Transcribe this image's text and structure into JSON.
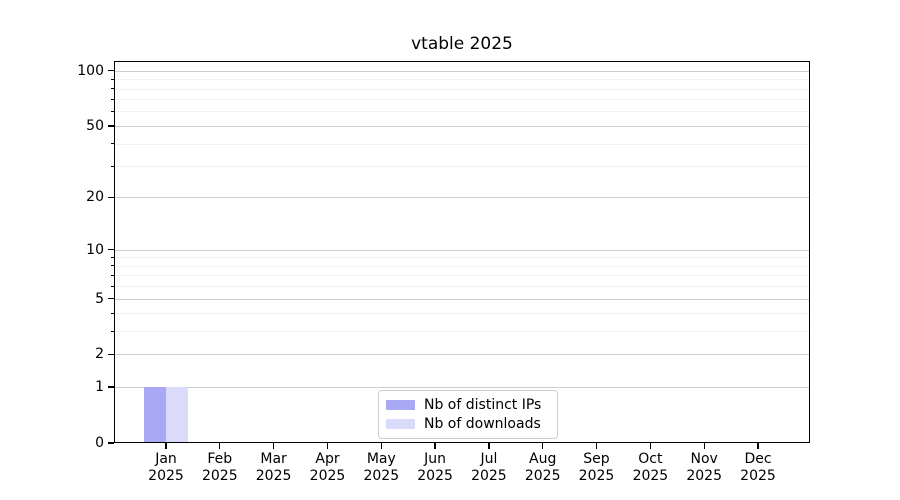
{
  "figure": {
    "title": "vtable 2025"
  },
  "chart_data": {
    "type": "bar",
    "title": "vtable 2025",
    "categories": [
      "Jan\n2025",
      "Feb\n2025",
      "Mar\n2025",
      "Apr\n2025",
      "May\n2025",
      "Jun\n2025",
      "Jul\n2025",
      "Aug\n2025",
      "Sep\n2025",
      "Oct\n2025",
      "Nov\n2025",
      "Dec\n2025"
    ],
    "series": [
      {
        "name": "Nb of distinct IPs",
        "color": "#a8a8f4",
        "values": [
          1,
          0,
          0,
          0,
          0,
          0,
          0,
          0,
          0,
          0,
          0,
          0
        ]
      },
      {
        "name": "Nb of downloads",
        "color": "#dadafa",
        "values": [
          1,
          0,
          0,
          0,
          0,
          0,
          0,
          0,
          0,
          0,
          0,
          0
        ]
      }
    ],
    "xlabel": "",
    "ylabel": "",
    "scale": "log1p",
    "ylim": [
      0,
      113
    ],
    "yticks": [
      0,
      1,
      2,
      5,
      10,
      20,
      50,
      100
    ],
    "minor_yticks": [
      3,
      4,
      6,
      7,
      8,
      9,
      30,
      40,
      60,
      70,
      80,
      90
    ],
    "grid": "horizontal",
    "legend": {
      "position": "lower center",
      "entries": [
        "Nb of distinct IPs",
        "Nb of downloads"
      ]
    }
  },
  "colors": {
    "grid_major": "#cdcdcd",
    "grid_minor": "#f1f1f1",
    "spine": "#000000",
    "background": "#ffffff",
    "text": "#000000"
  }
}
